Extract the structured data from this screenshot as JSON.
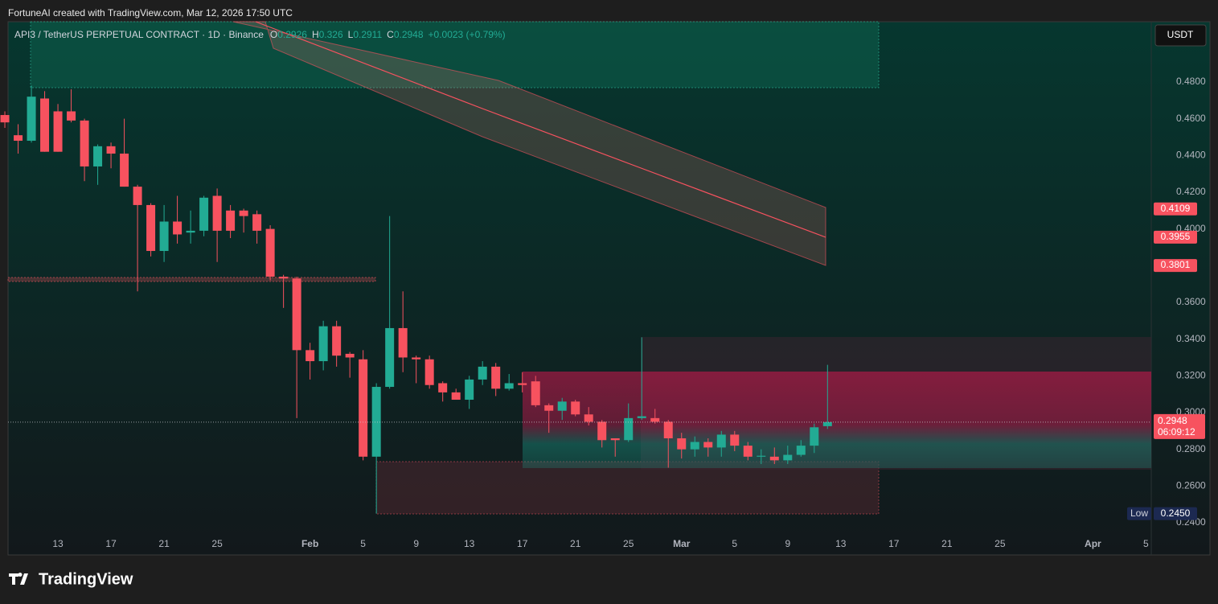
{
  "chart_data": {
    "type": "candlestick",
    "attribution": "FortuneAI created with TradingView.com, Mar 12, 2026 17:50 UTC",
    "symbol": "API3 / TetherUS PERPETUAL CONTRACT · 1D · Binance",
    "legend_labels": [
      "O",
      "H",
      "L",
      "C"
    ],
    "change": "+0.0023 (+0.79%)",
    "currency": "USDT",
    "brand": "TradingView",
    "up_color": "#22ab94",
    "down_color": "#f7525f",
    "open": [
      0.462,
      0.451,
      0.448,
      0.471,
      0.464,
      0.464,
      0.459,
      0.434,
      0.445,
      0.441,
      0.423,
      0.413,
      0.388,
      0.404,
      0.398,
      0.399,
      0.418,
      0.41,
      0.41,
      0.408,
      0.4,
      0.374,
      0.373,
      0.334,
      0.328,
      0.347,
      0.332,
      0.329,
      0.276,
      0.314,
      0.346,
      0.33,
      0.329,
      0.316,
      0.311,
      0.307,
      0.318,
      0.325,
      0.313,
      0.316,
      0.317,
      0.304,
      0.301,
      0.306,
      0.299,
      0.295,
      0.286,
      0.285,
      0.297,
      0.297,
      0.295,
      0.286,
      0.28,
      0.284,
      0.281,
      0.288,
      0.282,
      0.276,
      0.276,
      0.274,
      0.277,
      0.282,
      0.2926
    ],
    "high": [
      0.464,
      0.457,
      0.478,
      0.475,
      0.468,
      0.476,
      0.46,
      0.446,
      0.447,
      0.46,
      0.424,
      0.414,
      0.413,
      0.418,
      0.41,
      0.418,
      0.422,
      0.413,
      0.411,
      0.41,
      0.402,
      0.375,
      0.374,
      0.338,
      0.35,
      0.35,
      0.333,
      0.334,
      0.316,
      0.407,
      0.366,
      0.331,
      0.331,
      0.317,
      0.313,
      0.32,
      0.328,
      0.327,
      0.321,
      0.322,
      0.32,
      0.305,
      0.308,
      0.307,
      0.303,
      0.296,
      0.286,
      0.305,
      0.341,
      0.302,
      0.296,
      0.289,
      0.287,
      0.286,
      0.29,
      0.29,
      0.284,
      0.28,
      0.281,
      0.282,
      0.285,
      0.294,
      0.326
    ],
    "low": [
      0.455,
      0.441,
      0.447,
      0.442,
      0.442,
      0.458,
      0.426,
      0.424,
      0.433,
      0.423,
      0.366,
      0.385,
      0.382,
      0.392,
      0.392,
      0.396,
      0.382,
      0.395,
      0.398,
      0.392,
      0.372,
      0.357,
      0.297,
      0.318,
      0.323,
      0.325,
      0.319,
      0.274,
      0.245,
      0.313,
      0.322,
      0.316,
      0.313,
      0.306,
      0.307,
      0.302,
      0.315,
      0.309,
      0.312,
      0.311,
      0.303,
      0.289,
      0.296,
      0.298,
      0.293,
      0.281,
      0.276,
      0.284,
      0.296,
      0.294,
      0.27,
      0.275,
      0.276,
      0.276,
      0.276,
      0.279,
      0.274,
      0.272,
      0.272,
      0.272,
      0.276,
      0.278,
      0.2911
    ],
    "close": [
      0.458,
      0.448,
      0.472,
      0.442,
      0.442,
      0.459,
      0.434,
      0.445,
      0.441,
      0.423,
      0.413,
      0.388,
      0.404,
      0.397,
      0.399,
      0.417,
      0.399,
      0.399,
      0.407,
      0.399,
      0.374,
      0.373,
      0.334,
      0.328,
      0.347,
      0.331,
      0.33,
      0.276,
      0.314,
      0.346,
      0.33,
      0.329,
      0.315,
      0.311,
      0.307,
      0.318,
      0.325,
      0.313,
      0.316,
      0.315,
      0.304,
      0.301,
      0.306,
      0.299,
      0.295,
      0.285,
      0.285,
      0.297,
      0.298,
      0.295,
      0.286,
      0.28,
      0.284,
      0.281,
      0.288,
      0.282,
      0.276,
      0.2765,
      0.274,
      0.277,
      0.282,
      0.292,
      0.2948
    ],
    "xlim": [
      0.24,
      86.4
    ],
    "xticks": [
      {
        "value": 4,
        "label": "13"
      },
      {
        "value": 8,
        "label": "17"
      },
      {
        "value": 12,
        "label": "21"
      },
      {
        "value": 16,
        "label": "25"
      },
      {
        "value": 23,
        "label": "Feb"
      },
      {
        "value": 27,
        "label": "5"
      },
      {
        "value": 31,
        "label": "9"
      },
      {
        "value": 35,
        "label": "13"
      },
      {
        "value": 39,
        "label": "17"
      },
      {
        "value": 43,
        "label": "21"
      },
      {
        "value": 47,
        "label": "25"
      },
      {
        "value": 51,
        "label": "Mar"
      },
      {
        "value": 55,
        "label": "5"
      },
      {
        "value": 59,
        "label": "9"
      },
      {
        "value": 63,
        "label": "13"
      },
      {
        "value": 67,
        "label": "17"
      },
      {
        "value": 71,
        "label": "21"
      },
      {
        "value": 75,
        "label": "25"
      },
      {
        "value": 82,
        "label": "Apr"
      },
      {
        "value": 86,
        "label": "5"
      }
    ],
    "ylim": [
      0.2225,
      0.5128
    ],
    "yticks": [
      {
        "value": 0.48,
        "label": "0.4800"
      },
      {
        "value": 0.46,
        "label": "0.4600"
      },
      {
        "value": 0.44,
        "label": "0.4400"
      },
      {
        "value": 0.42,
        "label": "0.4200"
      },
      {
        "value": 0.4,
        "label": "0.4000"
      },
      {
        "value": 0.36,
        "label": "0.3600"
      },
      {
        "value": 0.34,
        "label": "0.3400"
      },
      {
        "value": 0.32,
        "label": "0.3200"
      },
      {
        "value": 0.3,
        "label": "0.3000"
      },
      {
        "value": 0.28,
        "label": "0.2800"
      },
      {
        "value": 0.26,
        "label": "0.2600"
      },
      {
        "value": 0.24,
        "label": "0.2400"
      }
    ],
    "price_labels": [
      0.4109,
      0.3955,
      0.3801
    ],
    "countdown": "06:09:12",
    "low_marker": {
      "label": "Low",
      "value": 0.245,
      "value_label": "0.2450"
    }
  }
}
